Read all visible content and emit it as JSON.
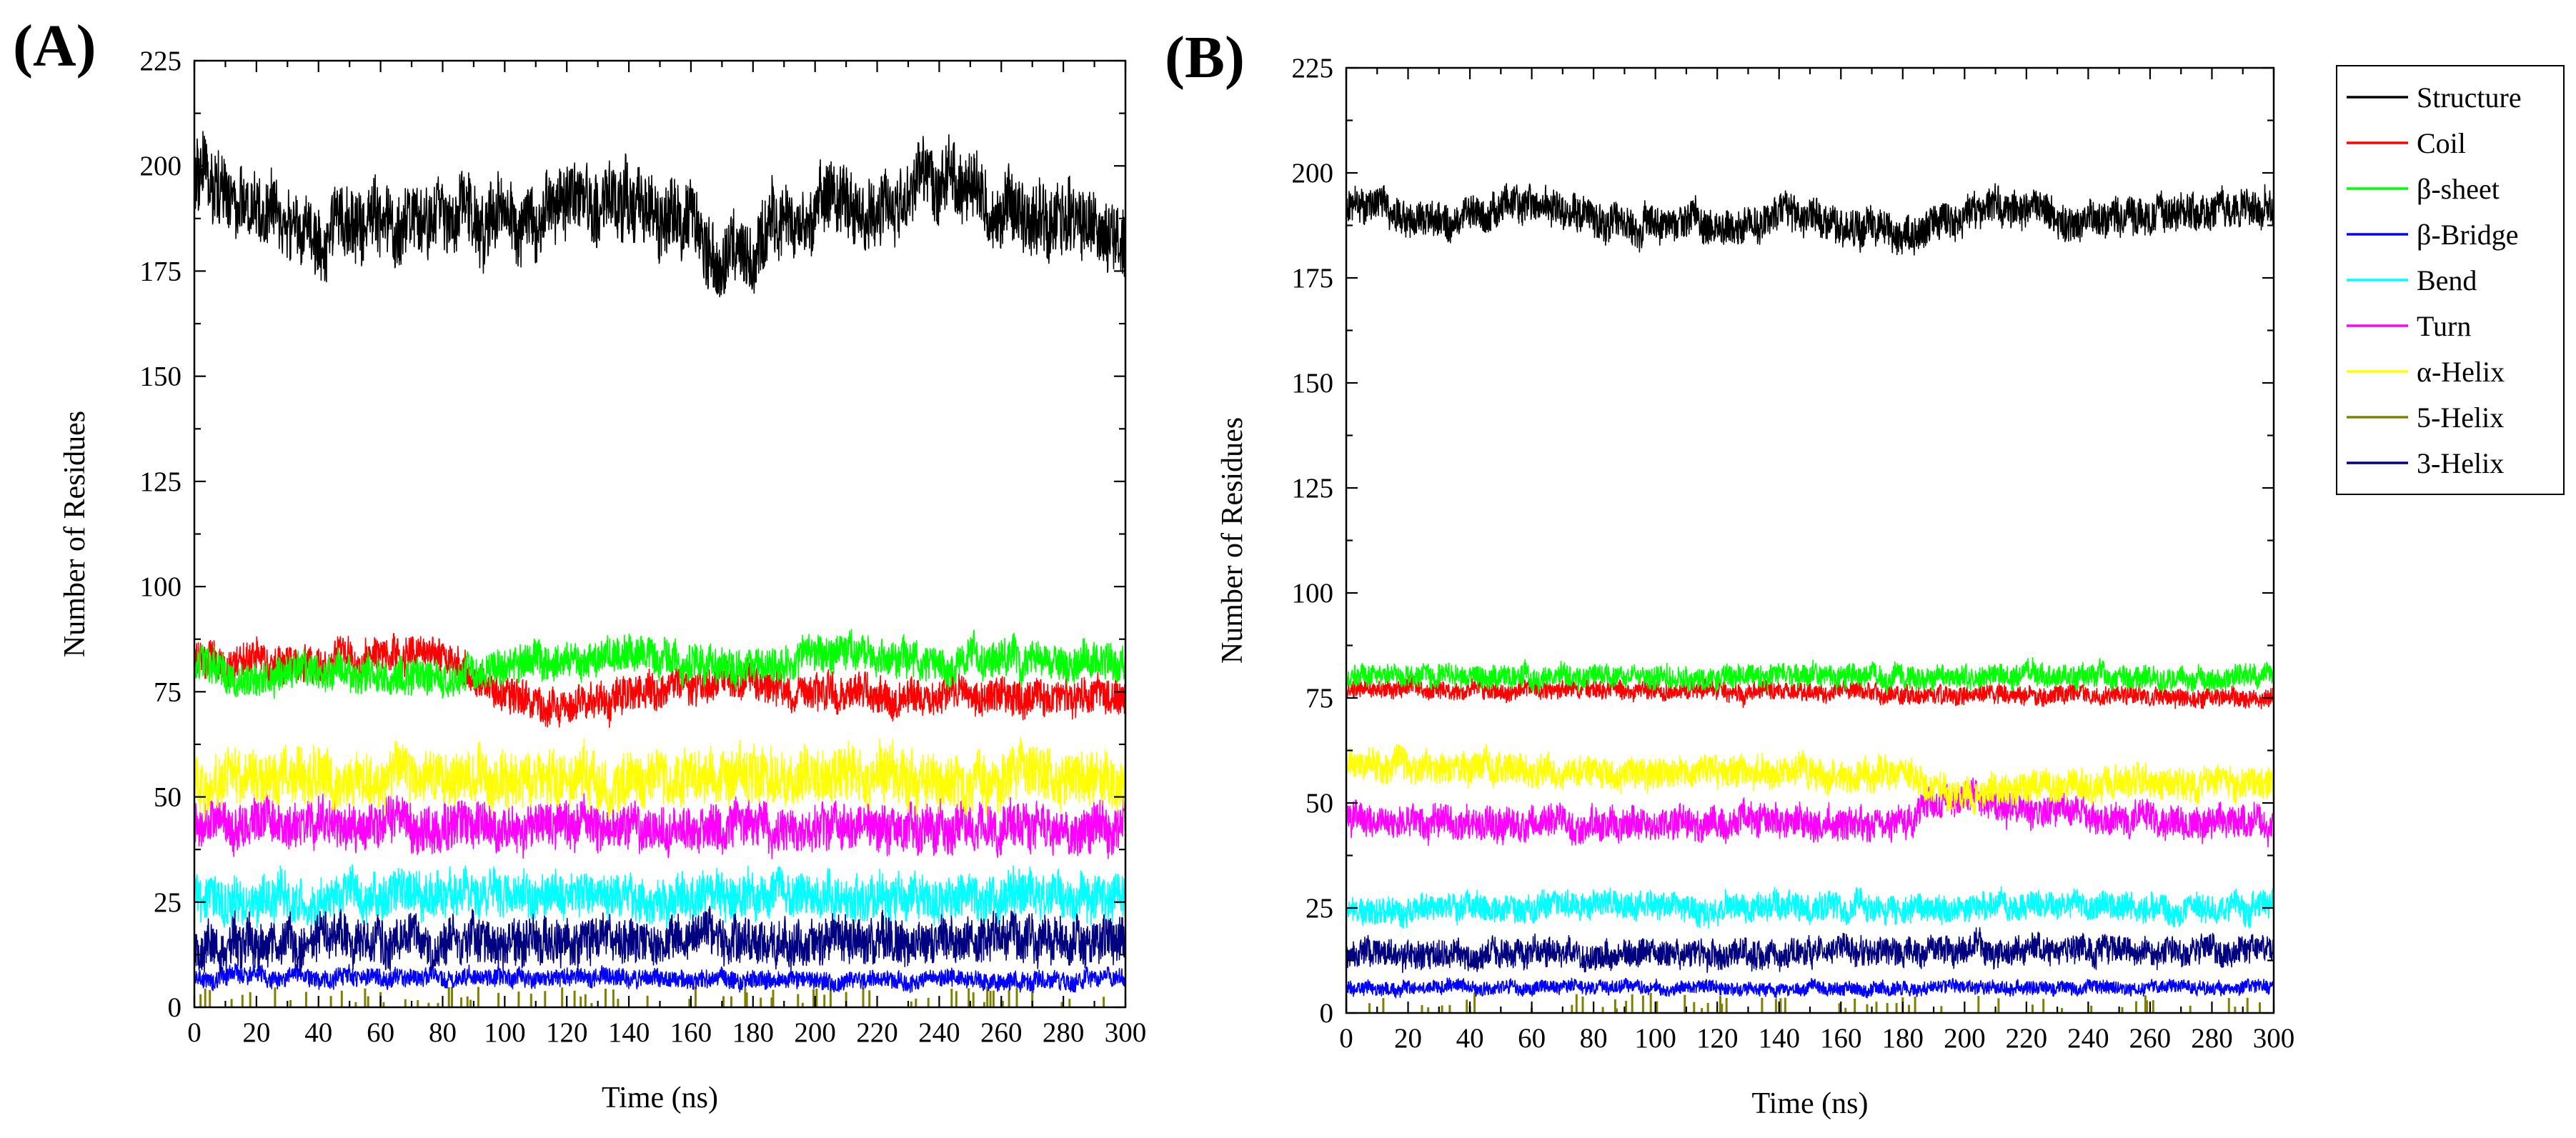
{
  "chart_data": [
    {
      "type": "line",
      "panel_label": "(A)",
      "xlabel": "Time (ns)",
      "ylabel": "Number of Residues",
      "xlim": [
        0,
        300
      ],
      "ylim": [
        0,
        225
      ],
      "x_ticks": [
        0,
        10,
        20,
        30,
        40,
        50,
        60,
        70,
        80,
        90,
        100,
        110,
        120,
        130,
        140,
        150,
        160,
        170,
        180,
        190,
        200,
        210,
        220,
        230,
        240,
        250,
        260,
        270,
        280,
        290,
        300
      ],
      "x_tick_labels": [
        "0",
        "20",
        "40",
        "60",
        "80",
        "100",
        "120",
        "140",
        "160",
        "180",
        "200",
        "220",
        "240",
        "260",
        "280",
        "300"
      ],
      "y_tick_labels": [
        "0",
        "25",
        "50",
        "75",
        "100",
        "125",
        "150",
        "175",
        "200",
        "225"
      ],
      "series": [
        {
          "name": "Structure",
          "color": "#000000",
          "x": [
            0,
            20,
            40,
            60,
            80,
            100,
            120,
            140,
            160,
            170,
            180,
            200,
            220,
            240,
            260,
            280,
            300
          ],
          "values": [
            197,
            190,
            184,
            188,
            186,
            187,
            191,
            193,
            186,
            176,
            180,
            191,
            188,
            197,
            190,
            187,
            184
          ],
          "noise": 8
        },
        {
          "name": "Coil",
          "color": "#ff0000",
          "x": [
            0,
            20,
            40,
            60,
            80,
            100,
            120,
            140,
            160,
            180,
            200,
            220,
            240,
            260,
            280,
            300
          ],
          "values": [
            82,
            82,
            82,
            84,
            84,
            74,
            72,
            74,
            76,
            78,
            74,
            75,
            73,
            74,
            74,
            74
          ],
          "noise": 4
        },
        {
          "name": "β-sheet",
          "color": "#00ff00",
          "x": [
            0,
            20,
            40,
            60,
            80,
            100,
            120,
            140,
            160,
            180,
            200,
            220,
            240,
            260,
            280,
            300
          ],
          "values": [
            81,
            78,
            80,
            79,
            78,
            81,
            83,
            83,
            82,
            80,
            84,
            84,
            83,
            83,
            82,
            82
          ],
          "noise": 4
        },
        {
          "name": "β-Bridge",
          "color": "#0000ff",
          "x": [
            0,
            100,
            200,
            300
          ],
          "values": [
            7,
            7,
            6,
            7
          ],
          "noise": 2
        },
        {
          "name": "Bend",
          "color": "#00ffff",
          "x": [
            0,
            100,
            200,
            300
          ],
          "values": [
            26,
            27,
            26,
            26
          ],
          "noise": 5
        },
        {
          "name": "Turn",
          "color": "#ff00ff",
          "x": [
            0,
            100,
            200,
            300
          ],
          "values": [
            44,
            43,
            42,
            43
          ],
          "noise": 5
        },
        {
          "name": "α-Helix",
          "color": "#ffff00",
          "x": [
            0,
            100,
            200,
            300
          ],
          "values": [
            55,
            54,
            55,
            54
          ],
          "noise": 6
        },
        {
          "name": "5-Helix",
          "color": "#808000",
          "x": [
            0,
            300
          ],
          "values": [
            0,
            0
          ],
          "noise": 0,
          "spikes": true
        },
        {
          "name": "3-Helix",
          "color": "#000080",
          "x": [
            0,
            100,
            200,
            300
          ],
          "values": [
            15,
            16,
            16,
            16
          ],
          "noise": 5
        }
      ]
    },
    {
      "type": "line",
      "panel_label": "(B)",
      "xlabel": "Time (ns)",
      "ylabel": "Number of Residues",
      "xlim": [
        0,
        300
      ],
      "ylim": [
        0,
        225
      ],
      "x_ticks": [
        0,
        10,
        20,
        30,
        40,
        50,
        60,
        70,
        80,
        90,
        100,
        110,
        120,
        130,
        140,
        150,
        160,
        170,
        180,
        190,
        200,
        210,
        220,
        230,
        240,
        250,
        260,
        270,
        280,
        290,
        300
      ],
      "x_tick_labels": [
        "0",
        "20",
        "40",
        "60",
        "80",
        "100",
        "120",
        "140",
        "160",
        "180",
        "200",
        "220",
        "240",
        "260",
        "280",
        "300"
      ],
      "y_tick_labels": [
        "0",
        "25",
        "50",
        "75",
        "100",
        "125",
        "150",
        "175",
        "200",
        "225"
      ],
      "series": [
        {
          "name": "Structure",
          "color": "#000000",
          "x": [
            0,
            30,
            60,
            90,
            120,
            150,
            180,
            210,
            240,
            270,
            300
          ],
          "values": [
            192,
            188,
            193,
            188,
            187,
            190,
            185,
            192,
            189,
            190,
            192
          ],
          "noise": 4
        },
        {
          "name": "Coil",
          "color": "#ff0000",
          "x": [
            0,
            100,
            200,
            300
          ],
          "values": [
            77,
            77,
            76,
            75
          ],
          "noise": 2
        },
        {
          "name": "β-sheet",
          "color": "#00ff00",
          "x": [
            0,
            100,
            200,
            300
          ],
          "values": [
            80,
            80,
            80,
            80
          ],
          "noise": 2.5
        },
        {
          "name": "β-Bridge",
          "color": "#0000ff",
          "x": [
            0,
            100,
            200,
            300
          ],
          "values": [
            6,
            6,
            6,
            6
          ],
          "noise": 1.5
        },
        {
          "name": "Bend",
          "color": "#00ffff",
          "x": [
            0,
            100,
            200,
            300
          ],
          "values": [
            24,
            26,
            25,
            25
          ],
          "noise": 3
        },
        {
          "name": "Turn",
          "color": "#ff00ff",
          "x": [
            0,
            100,
            180,
            200,
            220,
            300
          ],
          "values": [
            46,
            45,
            45,
            52,
            48,
            45
          ],
          "noise": 3.5
        },
        {
          "name": "α-Helix",
          "color": "#ffff00",
          "x": [
            0,
            100,
            180,
            200,
            220,
            300
          ],
          "values": [
            59,
            57,
            57,
            52,
            54,
            55
          ],
          "noise": 3.5
        },
        {
          "name": "5-Helix",
          "color": "#808000",
          "x": [
            0,
            300
          ],
          "values": [
            0,
            0
          ],
          "noise": 0,
          "spikes": true
        },
        {
          "name": "3-Helix",
          "color": "#000080",
          "x": [
            0,
            100,
            200,
            300
          ],
          "values": [
            14,
            14,
            15,
            15
          ],
          "noise": 3
        }
      ]
    }
  ],
  "legend": {
    "entries": [
      {
        "name": "Structure",
        "color": "#000000"
      },
      {
        "name": "Coil",
        "color": "#ff0000"
      },
      {
        "name": "β-sheet",
        "color": "#00ff00"
      },
      {
        "name": "β-Bridge",
        "color": "#0000ff"
      },
      {
        "name": "Bend",
        "color": "#00ffff"
      },
      {
        "name": "Turn",
        "color": "#ff00ff"
      },
      {
        "name": "α-Helix",
        "color": "#ffff00"
      },
      {
        "name": "5-Helix",
        "color": "#808000"
      },
      {
        "name": "3-Helix",
        "color": "#000080"
      }
    ]
  }
}
